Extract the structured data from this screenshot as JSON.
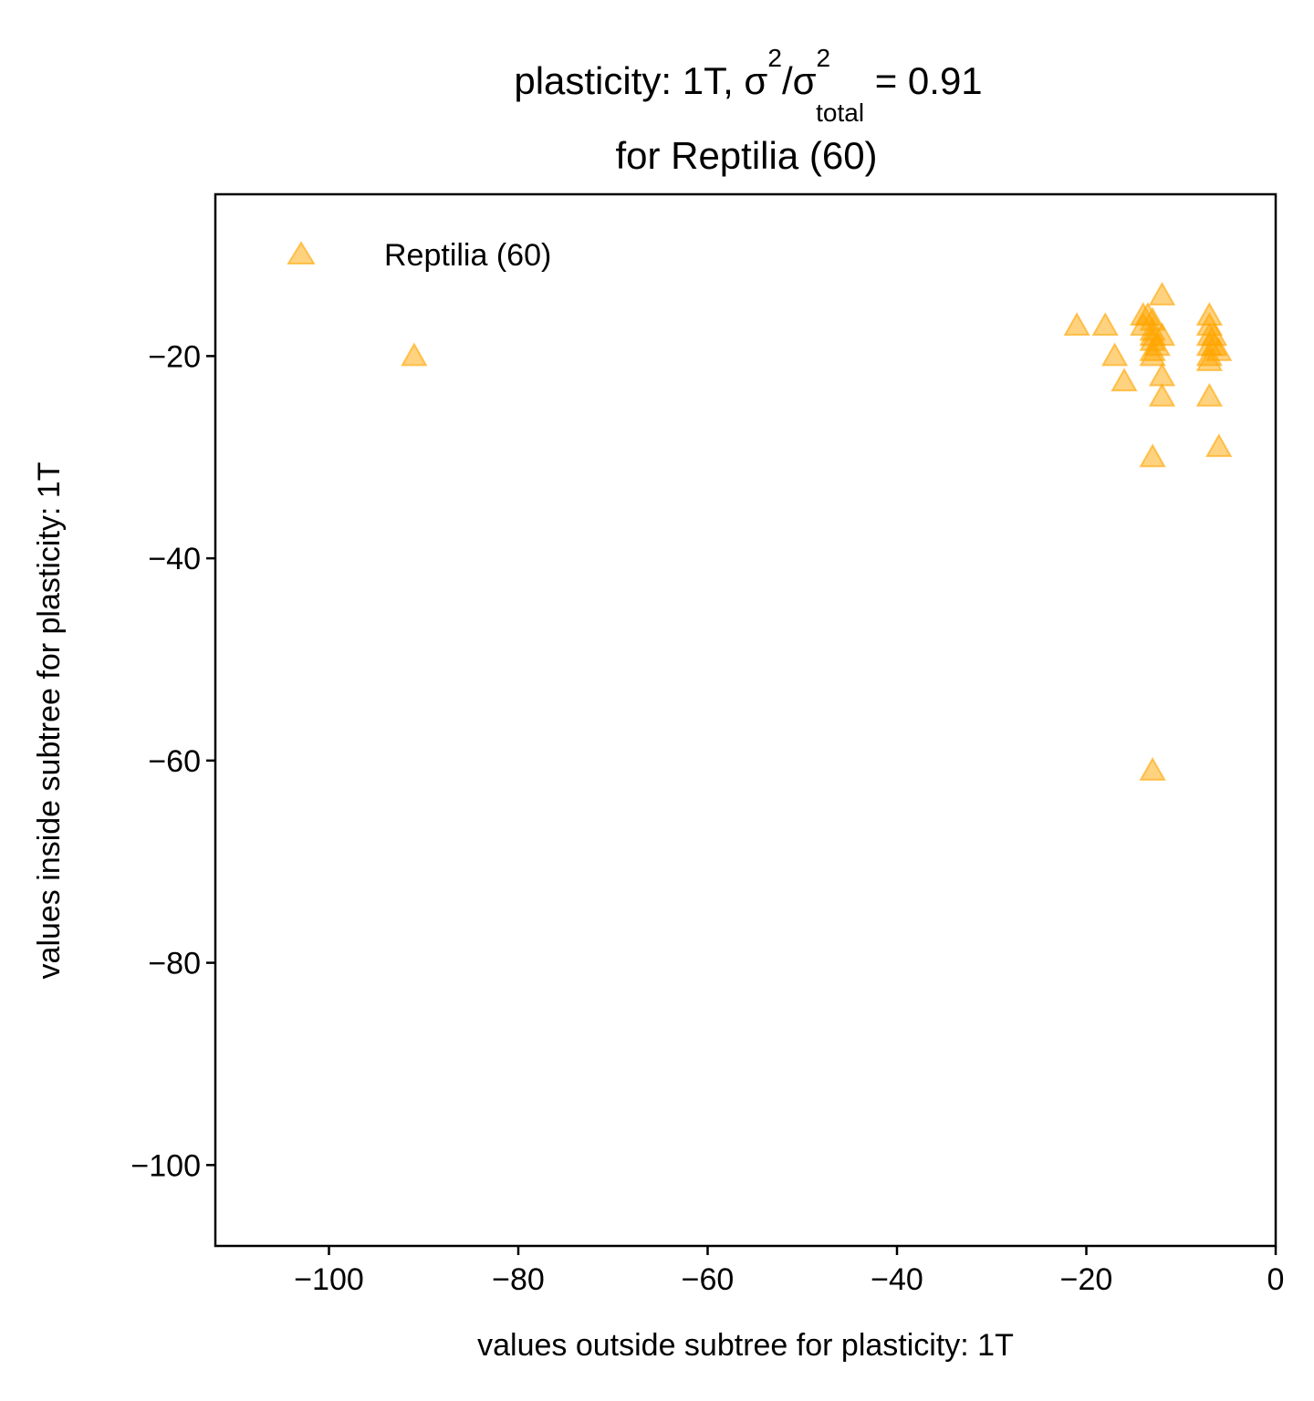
{
  "chart_data": {
    "type": "scatter",
    "title_line1_prefix": "plasticity: 1T, σ",
    "title_sup1": "2",
    "title_mid": "/σ",
    "title_sup2": "2",
    "title_sub": "total",
    "title_suffix": " =  0.91",
    "title_line2": "for Reptilia (60)",
    "xlabel": "values outside subtree for plasticity: 1T",
    "ylabel": "values inside subtree for plasticity: 1T",
    "xlim": [
      -112,
      0
    ],
    "ylim": [
      -108,
      -4
    ],
    "xticks": [
      -100,
      -80,
      -60,
      -40,
      -20,
      0
    ],
    "xtick_labels": [
      "−100",
      "−80",
      "−60",
      "−40",
      "−20",
      "0"
    ],
    "yticks": [
      -20,
      -40,
      -60,
      -80,
      -100
    ],
    "ytick_labels": [
      "−20",
      "−40",
      "−60",
      "−80",
      "−100"
    ],
    "grid": false,
    "legend_position": "top-left",
    "marker": "triangle",
    "color": "#FFA500",
    "series": [
      {
        "name": "Reptilia (60)",
        "points": [
          [
            -91,
            -20
          ],
          [
            -21,
            -17
          ],
          [
            -18,
            -17
          ],
          [
            -17,
            -20
          ],
          [
            -16,
            -22.5
          ],
          [
            -14,
            -16
          ],
          [
            -14,
            -17
          ],
          [
            -13.5,
            -16
          ],
          [
            -13,
            -16.5
          ],
          [
            -13,
            -17.5
          ],
          [
            -13,
            -18.5
          ],
          [
            -13,
            -19.5
          ],
          [
            -13,
            -20
          ],
          [
            -13,
            -18
          ],
          [
            -12.5,
            -19
          ],
          [
            -12,
            -14
          ],
          [
            -12,
            -18
          ],
          [
            -12,
            -22
          ],
          [
            -12,
            -24
          ],
          [
            -13,
            -30
          ],
          [
            -13,
            -61
          ],
          [
            -7,
            -16
          ],
          [
            -7,
            -17
          ],
          [
            -7,
            -18
          ],
          [
            -7,
            -19
          ],
          [
            -7,
            -20
          ],
          [
            -7,
            -20.5
          ],
          [
            -6.5,
            -18
          ],
          [
            -6.5,
            -19
          ],
          [
            -6,
            -19.5
          ],
          [
            -7,
            -24
          ],
          [
            -6,
            -29
          ]
        ]
      }
    ]
  }
}
